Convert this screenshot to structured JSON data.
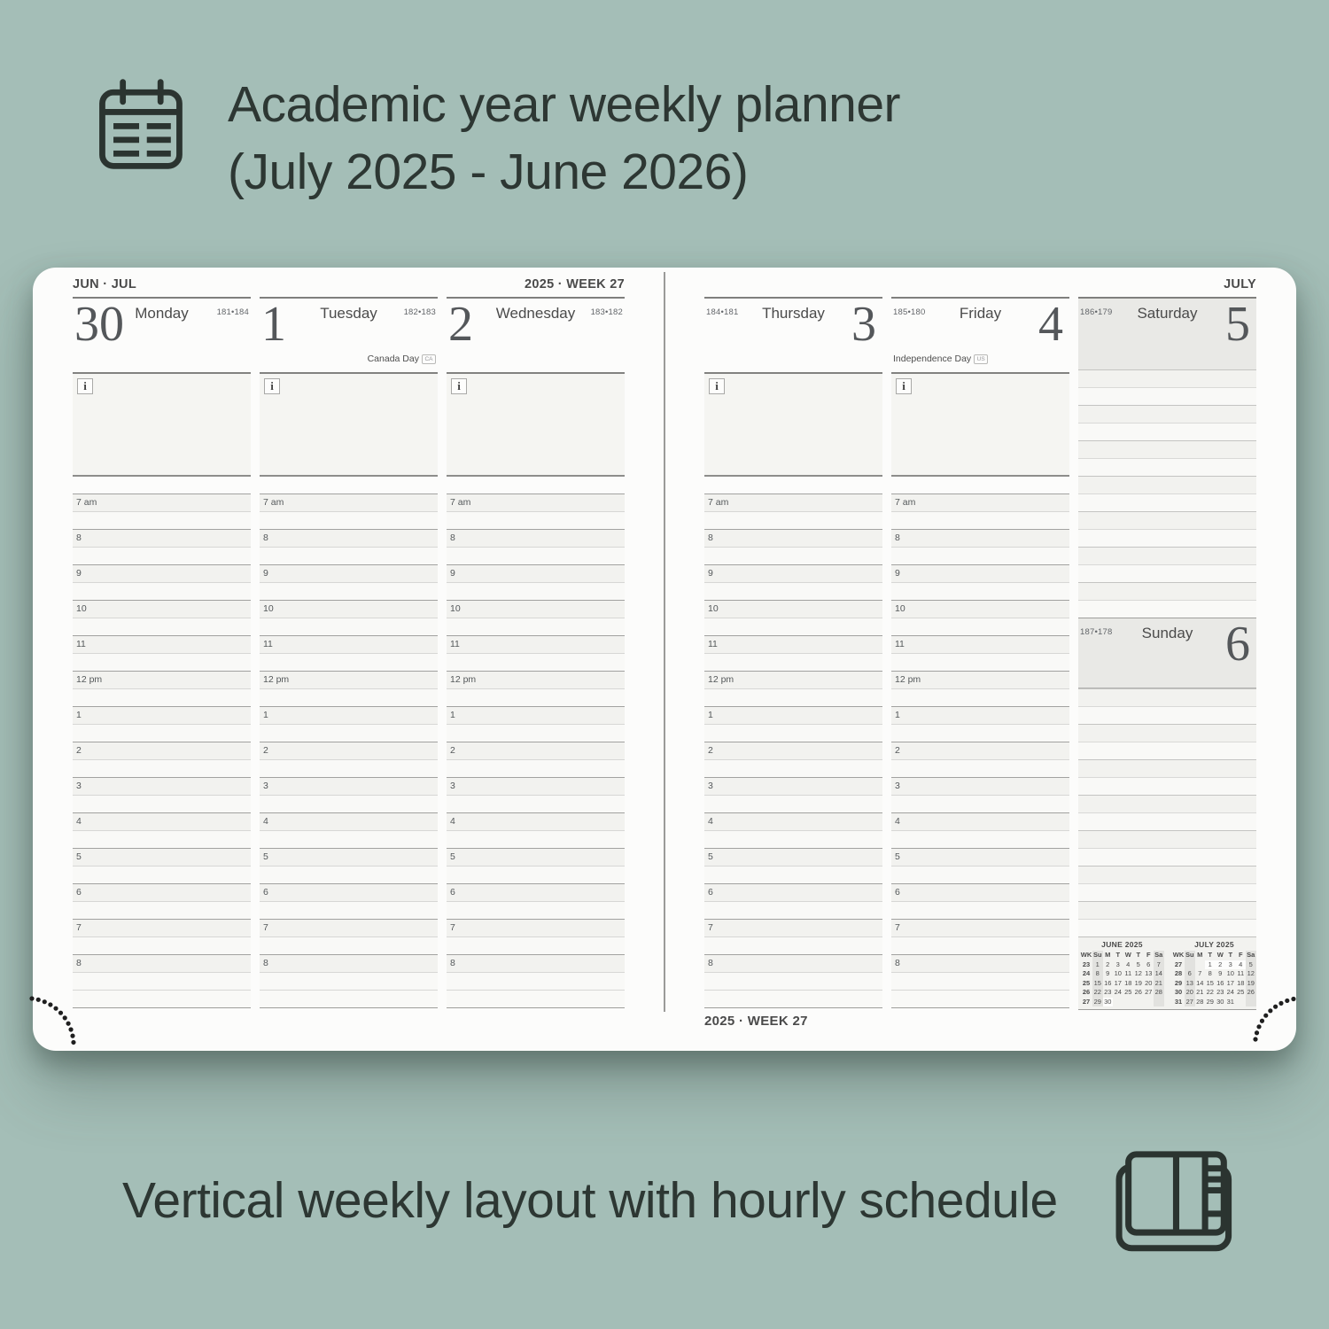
{
  "colors": {
    "background": "#a4beb7",
    "page": "#fcfcfb",
    "ink": "#2d3733",
    "planner_text": "#4a4a4a",
    "weekend_shade": "#e9e9e6"
  },
  "header": {
    "icon": "calendar-icon",
    "title_line1": "Academic year weekly planner",
    "title_line2": "(July 2025 - June 2026)"
  },
  "planner": {
    "month_label_left": "JUN · JUL",
    "week_label_top": "2025 · WEEK 27",
    "month_label_right": "JULY",
    "week_label_bottom": "2025 · WEEK 27",
    "info_icon": "i",
    "hours": [
      "7 am",
      "8",
      "9",
      "10",
      "11",
      "12 pm",
      "1",
      "2",
      "3",
      "4",
      "5",
      "6",
      "7",
      "8"
    ],
    "days": [
      {
        "name": "Monday",
        "number": "30",
        "day_of_year": "181•184",
        "holiday": "",
        "holiday_badge": ""
      },
      {
        "name": "Tuesday",
        "number": "1",
        "day_of_year": "182•183",
        "holiday": "Canada Day",
        "holiday_badge": "CA"
      },
      {
        "name": "Wednesday",
        "number": "2",
        "day_of_year": "183•182",
        "holiday": "",
        "holiday_badge": ""
      },
      {
        "name": "Thursday",
        "number": "3",
        "day_of_year": "184•181",
        "holiday": "",
        "holiday_badge": ""
      },
      {
        "name": "Friday",
        "number": "4",
        "day_of_year": "185•180",
        "holiday": "Independence Day",
        "holiday_badge": "US"
      },
      {
        "name": "Saturday",
        "number": "5",
        "day_of_year": "186•179",
        "holiday": "",
        "holiday_badge": ""
      },
      {
        "name": "Sunday",
        "number": "6",
        "day_of_year": "187•178",
        "holiday": "",
        "holiday_badge": ""
      }
    ],
    "mini_calendars": [
      {
        "title": "JUNE 2025",
        "headers": [
          "WK",
          "Su",
          "M",
          "T",
          "W",
          "T",
          "F",
          "Sa"
        ],
        "highlight_week": "27",
        "weeks": [
          {
            "wk": "23",
            "days": [
              "1",
              "2",
              "3",
              "4",
              "5",
              "6",
              "7"
            ]
          },
          {
            "wk": "24",
            "days": [
              "8",
              "9",
              "10",
              "11",
              "12",
              "13",
              "14"
            ]
          },
          {
            "wk": "25",
            "days": [
              "15",
              "16",
              "17",
              "18",
              "19",
              "20",
              "21"
            ]
          },
          {
            "wk": "26",
            "days": [
              "22",
              "23",
              "24",
              "25",
              "26",
              "27",
              "28"
            ]
          },
          {
            "wk": "27",
            "days": [
              "29",
              "30",
              "",
              "",
              "",
              "",
              ""
            ]
          }
        ]
      },
      {
        "title": "JULY 2025",
        "headers": [
          "WK",
          "Su",
          "M",
          "T",
          "W",
          "T",
          "F",
          "Sa"
        ],
        "highlight_week": "27",
        "weeks": [
          {
            "wk": "27",
            "days": [
              "",
              "",
              "1",
              "2",
              "3",
              "4",
              "5"
            ]
          },
          {
            "wk": "28",
            "days": [
              "6",
              "7",
              "8",
              "9",
              "10",
              "11",
              "12"
            ]
          },
          {
            "wk": "29",
            "days": [
              "13",
              "14",
              "15",
              "16",
              "17",
              "18",
              "19"
            ]
          },
          {
            "wk": "30",
            "days": [
              "20",
              "21",
              "22",
              "23",
              "24",
              "25",
              "26"
            ]
          },
          {
            "wk": "31",
            "days": [
              "27",
              "28",
              "29",
              "30",
              "31",
              "",
              ""
            ]
          }
        ]
      }
    ]
  },
  "caption": {
    "text": "Vertical weekly layout with hourly schedule",
    "icon": "notebook-icon"
  }
}
